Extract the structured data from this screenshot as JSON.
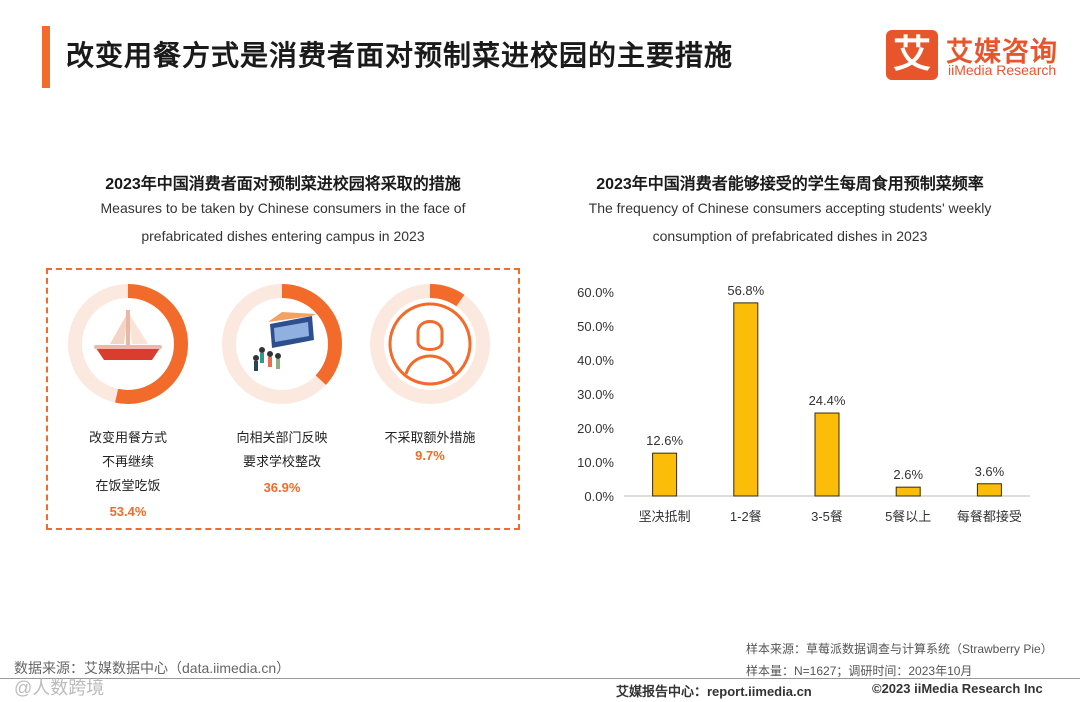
{
  "header": {
    "title": "改变用餐方式是消费者面对预制菜进校园的主要措施",
    "logo_mark": "艾",
    "logo_cn": "艾媒咨询",
    "logo_en": "iiMedia Research"
  },
  "left": {
    "title": "2023年中国消费者面对预制菜进校园将采取的措施",
    "subtitle_1": "Measures to be taken by Chinese consumers in the face of",
    "subtitle_2": "prefabricated dishes entering campus in 2023",
    "measures": [
      {
        "lines": [
          "改变用餐方式",
          "不再继续",
          "在饭堂吃饭"
        ],
        "value_label": "53.4%",
        "value": 53.4,
        "icon": "dish-icon"
      },
      {
        "lines": [
          "向相关部门反映",
          "要求学校整改"
        ],
        "value_label": "36.9%",
        "value": 36.9,
        "icon": "school-people-icon"
      },
      {
        "lines": [
          "不采取额外措施"
        ],
        "value_label": "9.7%",
        "value": 9.7,
        "icon": "person-icon"
      }
    ],
    "colors": {
      "accent": "#f26b2a",
      "track": "#fbe9df"
    }
  },
  "chart_data": {
    "type": "bar",
    "title": "2023年中国消费者能够接受的学生每周食用预制菜频率",
    "subtitle_1": "The frequency of Chinese consumers accepting students' weekly",
    "subtitle_2": "consumption of prefabricated dishes in 2023",
    "categories": [
      "坚决抵制",
      "1-2餐",
      "3-5餐",
      "5餐以上",
      "每餐都接受"
    ],
    "values": [
      12.6,
      56.8,
      24.4,
      2.6,
      3.6
    ],
    "value_labels": [
      "12.6%",
      "56.8%",
      "24.4%",
      "2.6%",
      "3.6%"
    ],
    "yticks": [
      "0.0%",
      "10.0%",
      "20.0%",
      "30.0%",
      "40.0%",
      "50.0%",
      "60.0%"
    ],
    "ylim": [
      0,
      60
    ],
    "xlabel": "",
    "ylabel": "",
    "bar_color": "#fbbd08",
    "bar_edge": "#3a2a00"
  },
  "footer": {
    "source": "数据来源：艾媒数据中心（data.iimedia.cn）",
    "sample_source": "样本来源：草莓派数据调查与计算系统（Strawberry Pie）",
    "sample_size": "样本量：N=1627；调研时间：2023年10月",
    "report_center": "艾媒报告中心：report.iimedia.cn",
    "copyright": "©2023  iiMedia Research  Inc",
    "watermark": "@人数跨境"
  }
}
